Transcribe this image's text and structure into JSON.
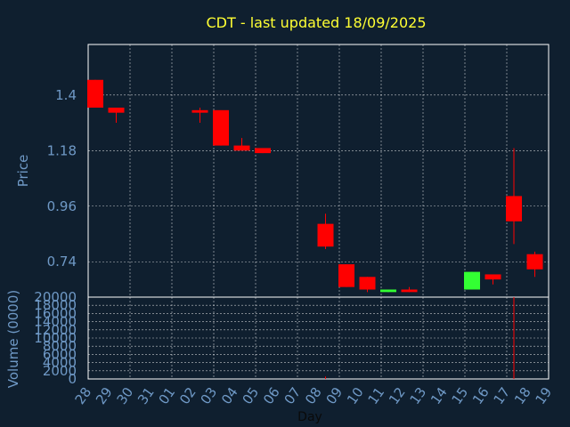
{
  "colors": {
    "background": "#0f1f2f",
    "title": "#ffff33",
    "axis_text": "#6f99c6",
    "grid": "#ffffff",
    "up": "#33ff33",
    "down": "#ff0000"
  },
  "chart_data": {
    "type": "candlestick",
    "title": "CDT - last updated 18/09/2025",
    "xlabel": "Day",
    "price_panel": {
      "ylabel": "Price",
      "yticks": [
        "0.74",
        "0.96",
        "1.18",
        "1.4"
      ],
      "ylim": [
        0.6,
        1.6
      ],
      "grid": true
    },
    "volume_panel": {
      "ylabel": "Volume (0000)",
      "yticks": [
        "0",
        "2000",
        "4000",
        "6000",
        "8000",
        "10000",
        "12000",
        "14000",
        "16000",
        "18000",
        "20000"
      ],
      "ylim": [
        0,
        20000
      ],
      "grid": true
    },
    "x_ticks": [
      "28",
      "29",
      "30",
      "31",
      "01",
      "02",
      "03",
      "04",
      "05",
      "06",
      "07",
      "08",
      "09",
      "10",
      "11",
      "12",
      "13",
      "14",
      "15",
      "16",
      "17",
      "18",
      "19"
    ],
    "candles": [
      {
        "day": "28",
        "open": 1.46,
        "high": 1.46,
        "low": 1.35,
        "close": 1.35,
        "volume": 0
      },
      {
        "day": "29",
        "open": 1.35,
        "high": 1.35,
        "low": 1.29,
        "close": 1.33,
        "volume": 0
      },
      {
        "day": "02",
        "open": 1.34,
        "high": 1.35,
        "low": 1.29,
        "close": 1.33,
        "volume": 0
      },
      {
        "day": "03",
        "open": 1.34,
        "high": 1.34,
        "low": 1.2,
        "close": 1.2,
        "volume": 0
      },
      {
        "day": "04",
        "open": 1.2,
        "high": 1.23,
        "low": 1.18,
        "close": 1.18,
        "volume": 0
      },
      {
        "day": "05",
        "open": 1.19,
        "high": 1.19,
        "low": 1.17,
        "close": 1.17,
        "volume": 0
      },
      {
        "day": "08",
        "open": 0.89,
        "high": 0.93,
        "low": 0.79,
        "close": 0.8,
        "volume": 600
      },
      {
        "day": "09",
        "open": 0.73,
        "high": 0.73,
        "low": 0.64,
        "close": 0.64,
        "volume": 0
      },
      {
        "day": "10",
        "open": 0.68,
        "high": 0.68,
        "low": 0.62,
        "close": 0.63,
        "volume": 0
      },
      {
        "day": "11",
        "open": 0.62,
        "high": 0.63,
        "low": 0.62,
        "close": 0.63,
        "volume": 0
      },
      {
        "day": "12",
        "open": 0.63,
        "high": 0.64,
        "low": 0.62,
        "close": 0.62,
        "volume": 0
      },
      {
        "day": "15",
        "open": 0.63,
        "high": 0.7,
        "low": 0.63,
        "close": 0.7,
        "volume": 0
      },
      {
        "day": "16",
        "open": 0.69,
        "high": 0.69,
        "low": 0.65,
        "close": 0.67,
        "volume": 0
      },
      {
        "day": "17",
        "open": 1.0,
        "high": 1.19,
        "low": 0.81,
        "close": 0.9,
        "volume": 20000
      },
      {
        "day": "18",
        "open": 0.77,
        "high": 0.78,
        "low": 0.68,
        "close": 0.71,
        "volume": 0
      }
    ]
  }
}
